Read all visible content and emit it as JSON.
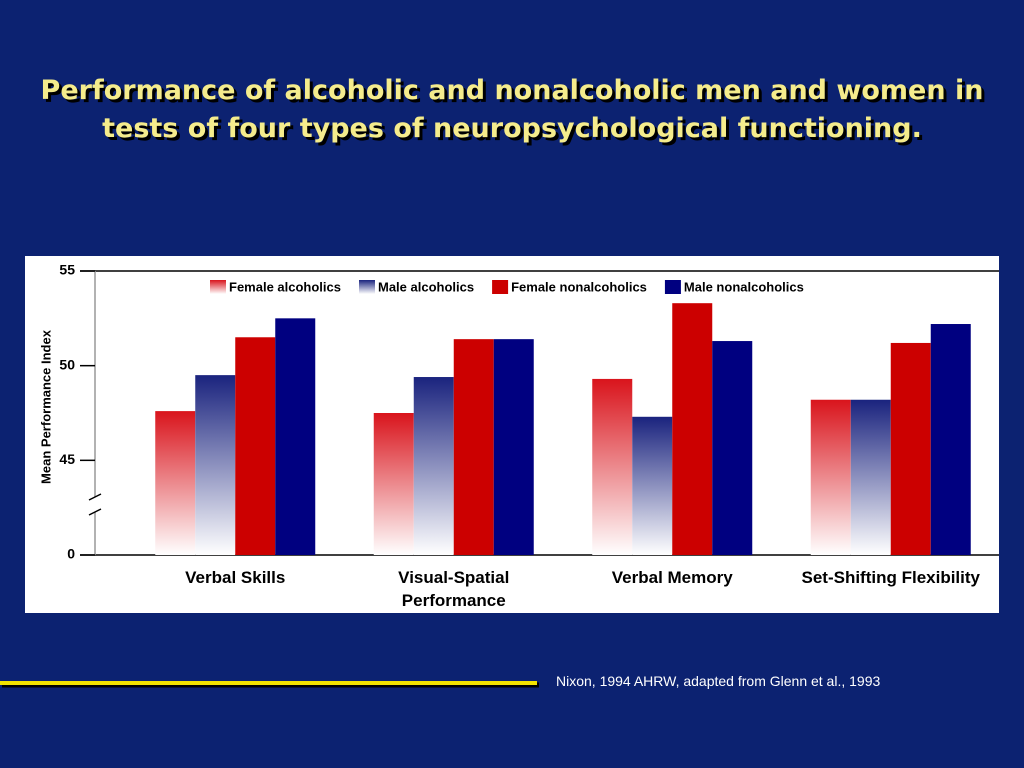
{
  "chart_data": {
    "type": "bar",
    "title": "Performance of alcoholic and nonalcoholic men and women in tests of four types of neuropsychological functioning.",
    "ylabel": "Mean Performance Index",
    "source": "Nixon, 1994 AHRW, adapted from Glenn et al., 1993",
    "categories": [
      "Verbal Skills",
      "Visual-Spatial Performance",
      "Verbal Memory",
      "Set-Shifting Flexibility"
    ],
    "series": [
      {
        "name": "Female alcoholics",
        "color": "#d9141c",
        "gradient": true,
        "values": [
          47.6,
          47.5,
          49.3,
          48.2
        ]
      },
      {
        "name": "Male alcoholics",
        "color": "#1a237e",
        "gradient": true,
        "values": [
          49.5,
          49.4,
          47.3,
          48.2
        ]
      },
      {
        "name": "Female nonalcoholics",
        "color": "#cc0000",
        "gradient": false,
        "values": [
          51.5,
          51.4,
          53.3,
          51.2
        ]
      },
      {
        "name": "Male nonalcoholics",
        "color": "#000080",
        "gradient": false,
        "values": [
          52.5,
          51.4,
          51.3,
          52.2
        ]
      }
    ],
    "ylim": [
      0,
      55
    ],
    "yticks": [
      0,
      45,
      50,
      55
    ],
    "axis_break": [
      0,
      40
    ]
  }
}
